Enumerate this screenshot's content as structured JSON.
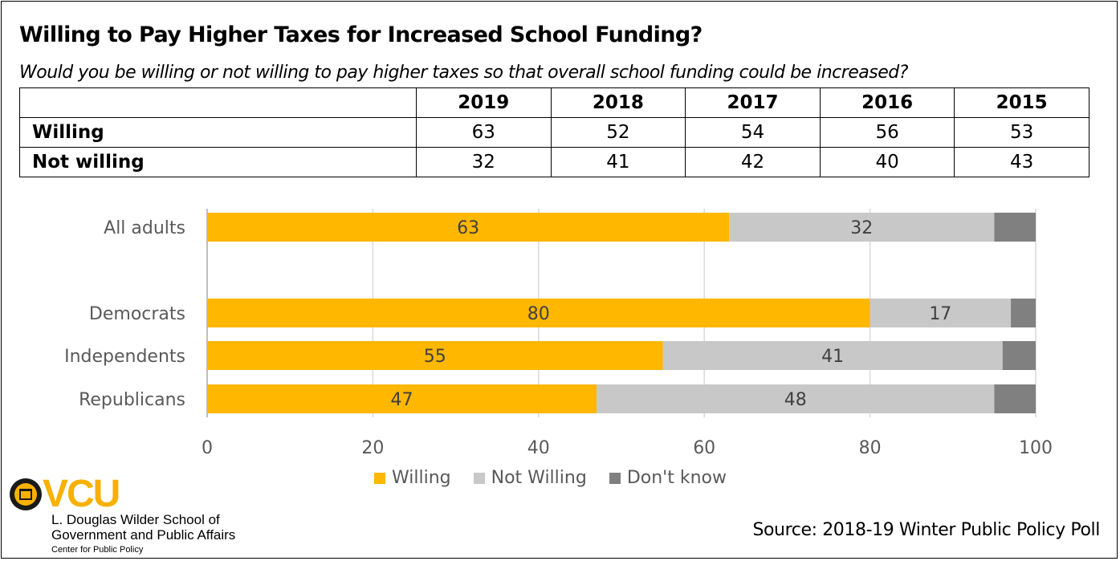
{
  "title": "Willing to Pay Higher Taxes for Increased School Funding?",
  "subtitle": "Would you be willing or not willing to pay higher taxes so that overall school funding could be increased?",
  "summary_table": {
    "years": [
      "2019",
      "2018",
      "2017",
      "2016",
      "2015"
    ],
    "rows": [
      {
        "label": "Willing",
        "values": [
          "63",
          "52",
          "54",
          "56",
          "53"
        ]
      },
      {
        "label": "Not willing",
        "values": [
          "32",
          "41",
          "42",
          "40",
          "43"
        ]
      }
    ]
  },
  "chart_data": {
    "type": "bar",
    "orientation": "horizontal",
    "stacked": true,
    "title": "",
    "xlabel": "",
    "ylabel": "",
    "categories": [
      "All adults",
      "Democrats",
      "Independents",
      "Republicans"
    ],
    "series": [
      {
        "name": "Willing",
        "color": "#FFB700",
        "values": [
          63,
          80,
          55,
          47
        ],
        "labels_shown": true
      },
      {
        "name": "Not Willing",
        "color": "#C8C8C8",
        "values": [
          32,
          17,
          41,
          48
        ],
        "labels_shown": true
      },
      {
        "name": "Don't know",
        "color": "#808080",
        "values": [
          5,
          3,
          4,
          5
        ],
        "labels_shown": false
      }
    ],
    "xlim": [
      0,
      100
    ],
    "xticks": [
      0,
      20,
      40,
      60,
      80,
      100
    ],
    "grid": true,
    "legend_position": "bottom"
  },
  "source": "Source: 2018-19 Winter Public Policy Poll",
  "logo": {
    "mark": "VCU",
    "line1": "L. Douglas Wilder School of",
    "line2": "Government and Public Affairs",
    "line3": "Center for Public Policy",
    "brand_color": "#F8B100"
  }
}
